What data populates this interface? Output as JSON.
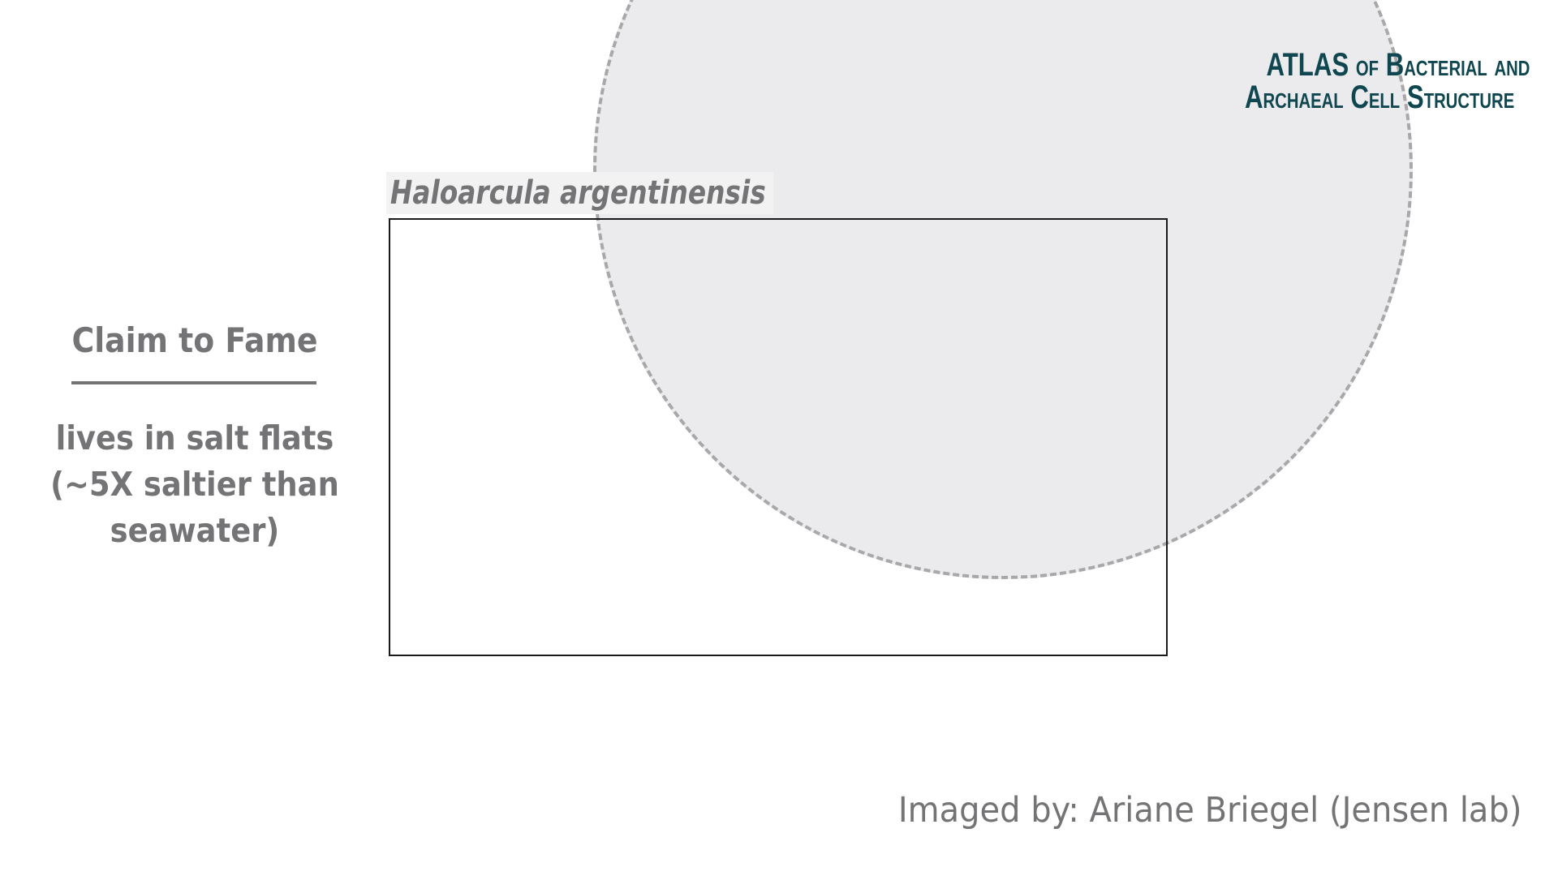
{
  "logo": {
    "line1_main_a": "A",
    "line1_main_b": "TLAS",
    "line1_of": "OF",
    "line1_b": "B",
    "line1_acterial": "ACTERIAL",
    "line1_and": "AND",
    "line2_a": "A",
    "line2_rchaeal": "RCHAEAL",
    "line2_c": "C",
    "line2_ell": "ELL",
    "line2_s": "S",
    "line2_tructure": "TRUCTURE"
  },
  "species": {
    "name": "Haloarcula argentinensis"
  },
  "claim": {
    "title": "Claim to Fame",
    "line1": "lives in salt flats",
    "line2": "(~5X saltier than",
    "line3": "seawater)"
  },
  "credit": {
    "text": "Imaged by: Ariane Briegel (Jensen lab)"
  },
  "colors": {
    "logo": "#0f4650",
    "text_gray": "#747476",
    "circle_fill": "#ebebed",
    "circle_stroke": "#a8a8aa",
    "frame": "#1a1a1a"
  }
}
